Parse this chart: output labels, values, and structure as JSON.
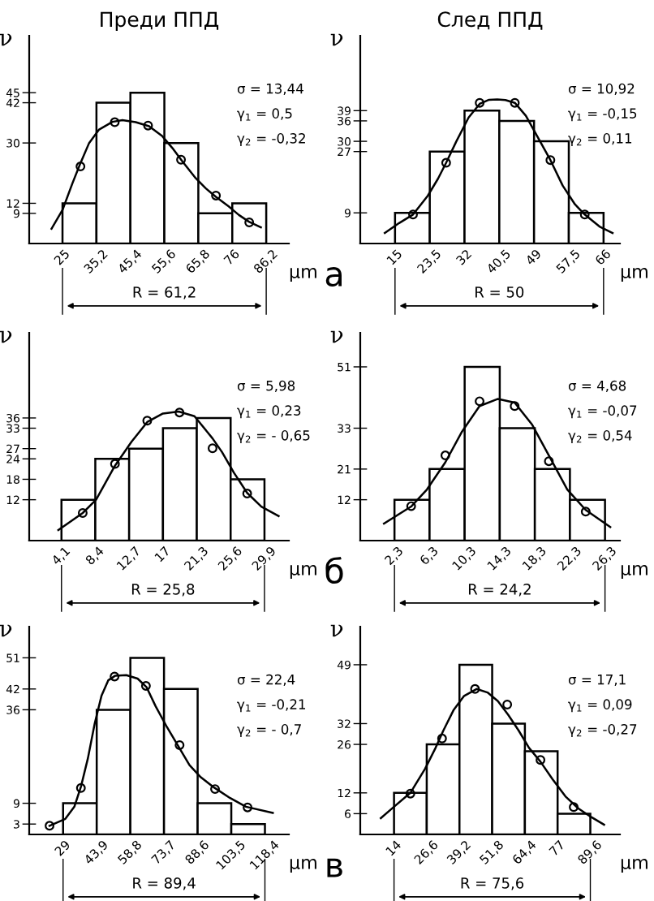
{
  "chart_data": [
    {
      "type": "histogram",
      "title": "Преди ППД",
      "xlabel": "μm",
      "ylabel": "ν",
      "color": "#ffffff",
      "bins": [
        25,
        35.2,
        45.4,
        55.6,
        65.8,
        76,
        86.2
      ],
      "values": [
        12,
        42,
        45,
        30,
        9,
        12
      ],
      "xlim": [
        15,
        93
      ],
      "ylim": [
        0,
        62
      ],
      "yticks": [
        9,
        12,
        30,
        42,
        45
      ],
      "xticks": [
        25,
        {
          "value": 35.2,
          "label": "35,2"
        },
        {
          "value": 45.4,
          "label": "45,4"
        },
        {
          "value": 55.6,
          "label": "55,6"
        },
        {
          "value": 65.8,
          "label": "65,8"
        },
        76,
        {
          "value": 86.2,
          "label": "86,2"
        }
      ],
      "series": [
        {
          "type": "line",
          "color": "#000000",
          "x": [
            21.7,
            25,
            28,
            30.4,
            33,
            36,
            40,
            43,
            47,
            51,
            55,
            58,
            61,
            65,
            68,
            71,
            75,
            78,
            81,
            84.6
          ],
          "values": [
            4.4,
            10,
            18,
            24,
            30,
            34,
            36.3,
            36.8,
            36.2,
            35,
            32,
            28.5,
            24.5,
            19.5,
            16.5,
            14,
            11,
            8.5,
            6.5,
            4.8
          ]
        },
        {
          "type": "scatter",
          "color": "#000000",
          "marker": "circle",
          "x": [
            30.4,
            40.7,
            50.7,
            60.6,
            71.1,
            81.1
          ],
          "values": [
            23,
            36.2,
            35.2,
            25,
            14.3,
            6.3
          ]
        }
      ],
      "annotations": [
        "σ = 13,44",
        "γ$_{1}$ = 0,5",
        "γ$_{2}$ = -0,32",
        "R = 61,2"
      ]
    },
    {
      "type": "histogram",
      "title": "След ППД",
      "xlabel": "μm",
      "ylabel": "ν",
      "color": "#ffffff",
      "bins": [
        15,
        23.5,
        32,
        40.5,
        49,
        57.5,
        66
      ],
      "values": [
        9,
        27,
        39,
        36,
        30,
        9
      ],
      "xlim": [
        6.5,
        70
      ],
      "ylim": [
        0,
        61
      ],
      "yticks": [
        9,
        27,
        30,
        36,
        39
      ],
      "xticks": [
        15,
        {
          "value": 23.5,
          "label": "23,5"
        },
        32,
        {
          "value": 40.5,
          "label": "40,5"
        },
        49,
        {
          "value": 57.5,
          "label": "57,5"
        },
        66
      ],
      "series": [
        {
          "type": "line",
          "color": "#000000",
          "x": [
            12.5,
            16,
            19.4,
            23,
            25.5,
            27.5,
            30,
            33,
            35.7,
            38,
            40,
            42,
            44.3,
            47,
            50,
            53,
            56,
            59,
            61.4,
            65,
            68.2
          ],
          "values": [
            3.1,
            6,
            8.5,
            14,
            19,
            23.7,
            30,
            37,
            41,
            42.2,
            42.3,
            42.1,
            41.3,
            37.5,
            31,
            24.5,
            17,
            11.5,
            8.5,
            5,
            3.1
          ]
        },
        {
          "type": "scatter",
          "color": "#000000",
          "marker": "circle",
          "x": [
            19.4,
            27.5,
            35.7,
            44.3,
            53,
            61.4
          ],
          "values": [
            8.5,
            23.7,
            41.3,
            41.3,
            24.5,
            8.5
          ]
        }
      ],
      "annotations": [
        "σ = 10,92",
        "γ$_{1}$ = -0,15",
        "γ$_{2}$ = 0,11",
        "R = 50",
        "а"
      ]
    },
    {
      "type": "histogram",
      "xlabel": "μm",
      "ylabel": "ν",
      "color": "#ffffff",
      "bins": [
        4.1,
        8.4,
        12.7,
        17,
        21.3,
        25.6,
        29.9
      ],
      "values": [
        12,
        24,
        27,
        33,
        36,
        18
      ],
      "xlim": [
        0,
        33
      ],
      "ylim": [
        0,
        61
      ],
      "yticks": [
        12,
        18,
        24,
        27,
        33,
        36
      ],
      "xticks": [
        {
          "value": 4.1,
          "label": "4,1"
        },
        {
          "value": 8.4,
          "label": "8,4"
        },
        {
          "value": 12.7,
          "label": "12,7"
        },
        17,
        {
          "value": 21.3,
          "label": "21,3"
        },
        {
          "value": 25.6,
          "label": "25,6"
        },
        {
          "value": 29.9,
          "label": "29,9"
        }
      ],
      "series": [
        {
          "type": "line",
          "color": "#000000",
          "x": [
            3.7,
            6.8,
            8.5,
            10.9,
            13,
            15,
            17,
            19,
            21,
            23.3,
            24.5,
            26,
            27.7,
            29.5,
            31.7
          ],
          "values": [
            3.1,
            8.1,
            12,
            22,
            29,
            34.8,
            37.3,
            37.9,
            36.5,
            30,
            26,
            20,
            14,
            10,
            7.2
          ]
        },
        {
          "type": "scatter",
          "color": "#000000",
          "marker": "circle",
          "x": [
            6.8,
            10.9,
            15,
            19.1,
            23.3,
            27.7
          ],
          "values": [
            8.1,
            22.5,
            35.2,
            37.6,
            27.1,
            13.8
          ]
        }
      ],
      "annotations": [
        "σ = 5,98",
        "γ$_{1}$ = 0,23",
        "γ$_{2}$ = - 0,65",
        "R = 25,8"
      ]
    },
    {
      "type": "histogram",
      "xlabel": "μm",
      "ylabel": "ν",
      "color": "#ffffff",
      "bins": [
        2.3,
        6.3,
        10.3,
        14.3,
        18.3,
        22.3,
        26.3
      ],
      "values": [
        12,
        21,
        51,
        33,
        21,
        12
      ],
      "xlim": [
        -1.6,
        28
      ],
      "ylim": [
        0,
        61
      ],
      "yticks": [
        12,
        21,
        33,
        51
      ],
      "xticks": [
        {
          "value": 2.3,
          "label": "2,3"
        },
        {
          "value": 6.3,
          "label": "6,3"
        },
        {
          "value": 10.3,
          "label": "10,3"
        },
        {
          "value": 14.3,
          "label": "14,3"
        },
        {
          "value": 18.3,
          "label": "18,3"
        },
        {
          "value": 22.3,
          "label": "22,3"
        },
        {
          "value": 26.3,
          "label": "26,3"
        }
      ],
      "series": [
        {
          "type": "line",
          "color": "#000000",
          "x": [
            1.1,
            4.2,
            6,
            8.1,
            10,
            12,
            14.1,
            16,
            18,
            19.9,
            22,
            24.1,
            26.9
          ],
          "values": [
            5,
            10,
            15,
            23,
            32,
            39.5,
            41.6,
            40.5,
            34,
            25,
            15,
            9,
            4
          ]
        },
        {
          "type": "scatter",
          "color": "#000000",
          "marker": "circle",
          "x": [
            4.2,
            8.1,
            12,
            16,
            19.9,
            24.1
          ],
          "values": [
            10.1,
            25,
            40.9,
            39.5,
            23.3,
            8.5
          ]
        }
      ],
      "annotations": [
        "σ = 4,68",
        "γ$_{1}$ = -0,07",
        "γ$_{2}$ = 0,54",
        "R = 24,2",
        "б"
      ]
    },
    {
      "type": "histogram",
      "xlabel": "μm",
      "ylabel": "ν",
      "color": "#ffffff",
      "bins": [
        29,
        43.9,
        58.8,
        73.7,
        88.6,
        103.5,
        118.4
      ],
      "values": [
        9,
        36,
        51,
        42,
        9,
        3
      ],
      "xlim": [
        14,
        129
      ],
      "ylim": [
        0,
        60
      ],
      "yticks": [
        3,
        9,
        36,
        42,
        51
      ],
      "xticks": [
        29,
        {
          "value": 43.9,
          "label": "43,9"
        },
        {
          "value": 58.8,
          "label": "58,8"
        },
        {
          "value": 73.7,
          "label": "73,7"
        },
        {
          "value": 88.6,
          "label": "88,6"
        },
        {
          "value": 103.5,
          "label": "103,5"
        },
        {
          "value": 118.4,
          "label": "118,4"
        }
      ],
      "series": [
        {
          "type": "line",
          "color": "#000000",
          "x": [
            23,
            30,
            34,
            37,
            40,
            43,
            46,
            49,
            52,
            57,
            62,
            66,
            70,
            75,
            80,
            85,
            90,
            96,
            103,
            110,
            121.9
          ],
          "values": [
            2.5,
            4.5,
            8,
            14,
            22,
            32,
            40,
            44.5,
            45.8,
            46,
            45,
            42.5,
            37,
            31,
            25.5,
            20,
            16.5,
            13.5,
            10.5,
            8,
            6.2
          ]
        },
        {
          "type": "scatter",
          "color": "#000000",
          "marker": "circle",
          "x": [
            23,
            36.9,
            51.8,
            65.7,
            80.6,
            96.3,
            110.7
          ],
          "values": [
            2.5,
            13.4,
            45.6,
            42.9,
            25.8,
            13.1,
            7.8
          ]
        }
      ],
      "annotations": [
        "σ = 22,4",
        "γ$_{1}$ = -0,21",
        "γ$_{2}$ = - 0,7",
        "R = 89,4"
      ]
    },
    {
      "type": "histogram",
      "xlabel": "μm",
      "ylabel": "ν",
      "color": "#ffffff",
      "bins": [
        14,
        26.6,
        39.2,
        51.8,
        64.4,
        77,
        89.6
      ],
      "values": [
        12,
        26,
        49,
        32,
        24,
        6
      ],
      "xlim": [
        1,
        101
      ],
      "ylim": [
        0,
        60
      ],
      "yticks": [
        6,
        12,
        26,
        32,
        49
      ],
      "xticks": [
        14,
        {
          "value": 26.6,
          "label": "26,6"
        },
        {
          "value": 39.2,
          "label": "39,2"
        },
        {
          "value": 51.8,
          "label": "51,8"
        },
        {
          "value": 64.4,
          "label": "64,4"
        },
        77,
        {
          "value": 89.6,
          "label": "89,6"
        }
      ],
      "series": [
        {
          "type": "line",
          "color": "#000000",
          "x": [
            8.9,
            14,
            20.3,
            26,
            30,
            33,
            37,
            41,
            45.8,
            50,
            54,
            58,
            62,
            66,
            70.4,
            75,
            80,
            85,
            90,
            94.9
          ],
          "values": [
            4.7,
            8,
            12,
            19,
            25,
            30,
            36,
            40,
            42,
            41,
            38.5,
            34.5,
            30,
            25,
            21,
            16,
            11,
            7.5,
            5,
            2.8
          ]
        },
        {
          "type": "scatter",
          "color": "#000000",
          "marker": "circle",
          "x": [
            20.3,
            32.5,
            45.2,
            57.6,
            70.4,
            83.2
          ],
          "values": [
            11.8,
            27.7,
            42,
            37.5,
            21.5,
            7.9
          ]
        }
      ],
      "annotations": [
        "σ = 17,1",
        "γ$_{1}$ = 0,09",
        "γ$_{2}$ = -0,27",
        "R = 75,6",
        "в"
      ]
    }
  ]
}
